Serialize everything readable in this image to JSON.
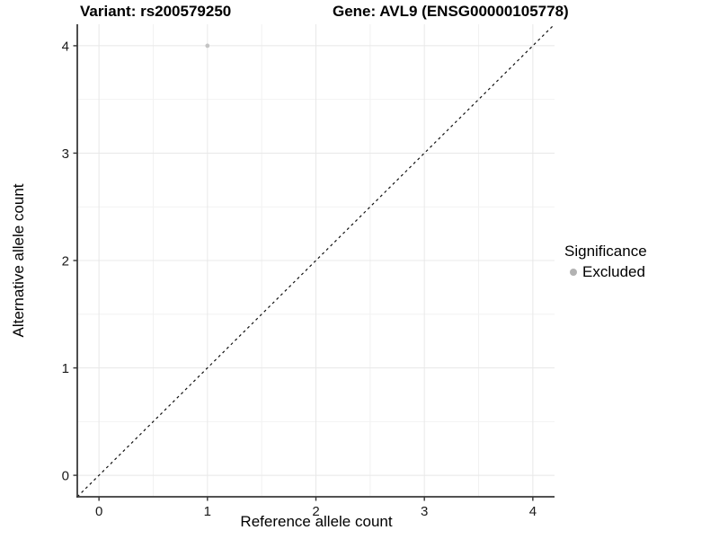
{
  "chart_data": {
    "type": "scatter",
    "title_left": "Variant: rs200579250",
    "title_right": "Gene: AVL9 (ENSG00000105778)",
    "xlabel": "Reference allele count",
    "ylabel": "Alternative allele count",
    "xlim": [
      -0.2,
      4.2
    ],
    "ylim": [
      -0.2,
      4.2
    ],
    "x_ticks": [
      0,
      1,
      2,
      3,
      4
    ],
    "y_ticks": [
      0,
      1,
      2,
      3,
      4
    ],
    "x_minor_ticks": [
      0.5,
      1.5,
      2.5,
      3.5
    ],
    "y_minor_ticks": [
      0.5,
      1.5,
      2.5,
      3.5
    ],
    "grid": true,
    "series": [
      {
        "name": "Excluded",
        "color": "#c4c4c4",
        "points": [
          {
            "x": 1,
            "y": 4
          }
        ]
      }
    ],
    "reference_line": {
      "type": "identity",
      "style": "dashed",
      "color": "#111111"
    },
    "legend": {
      "title": "Significance",
      "position": "right",
      "items": [
        {
          "label": "Excluded",
          "color": "#b2b2b2"
        }
      ]
    },
    "colors": {
      "grid_major": "#e8e8e8",
      "grid_minor": "#f2f2f2",
      "axis_line": "#3a3a3a",
      "tick_mark": "#333333",
      "tick_label": "#1a1a1a"
    }
  }
}
